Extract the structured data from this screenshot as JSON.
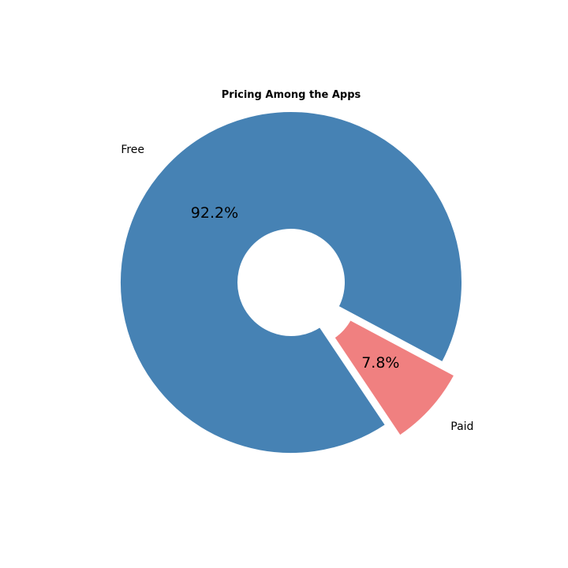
{
  "chart_data": {
    "type": "pie",
    "title": "Pricing Among the Apps",
    "categories": [
      "Free",
      "Paid"
    ],
    "values": [
      92.2,
      7.8
    ],
    "value_labels": [
      "92.2%",
      "7.8%"
    ],
    "colors": [
      "#4682b4",
      "#f08080"
    ],
    "donut": true,
    "exploded": [
      "Paid"
    ],
    "legend": "none"
  }
}
